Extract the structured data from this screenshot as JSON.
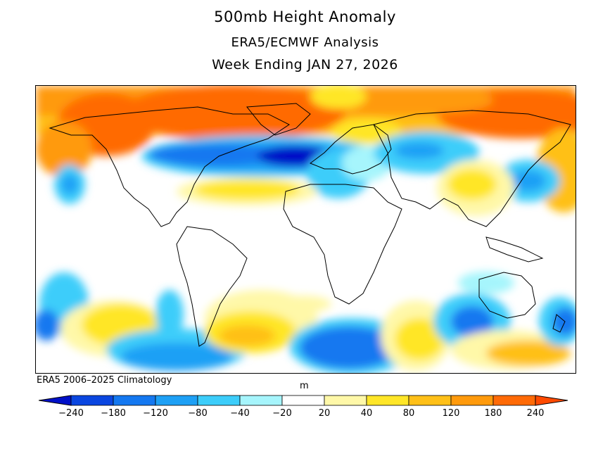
{
  "title": {
    "line1": "500mb Height Anomaly",
    "line2": "ERA5/ECMWF Analysis",
    "line3": "Week Ending JAN 27, 2026"
  },
  "climatology_note": "ERA5 2006–2025 Climatology",
  "units": "m",
  "colorbar": {
    "labels": [
      "−240",
      "−180",
      "−120",
      "−80",
      "−40",
      "−20",
      "20",
      "40",
      "80",
      "120",
      "180",
      "240"
    ],
    "colors": [
      "#0010c8",
      "#0a46e0",
      "#1478f0",
      "#1ea0f5",
      "#3ccdfa",
      "#a6f5fc",
      "#ffffff",
      "#fff8a8",
      "#ffe628",
      "#ffc018",
      "#ff9a0c",
      "#ff6a06",
      "#ff4a00"
    ]
  },
  "map": {
    "projection": "global cylindrical",
    "field": "500mb height anomaly",
    "outline_color": "#000000"
  }
}
